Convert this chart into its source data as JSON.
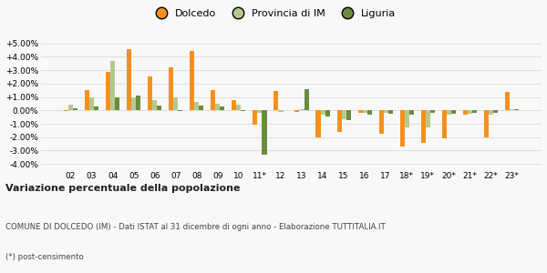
{
  "years": [
    "02",
    "03",
    "04",
    "05",
    "06",
    "07",
    "08",
    "09",
    "10",
    "11*",
    "12",
    "13",
    "14",
    "15",
    "16",
    "17",
    "18*",
    "19*",
    "20*",
    "21*",
    "22*",
    "23*"
  ],
  "dolcedo": [
    -0.05,
    1.5,
    2.9,
    4.6,
    2.55,
    3.2,
    4.45,
    1.5,
    0.75,
    -1.05,
    1.45,
    -0.1,
    -2.05,
    -1.6,
    -0.2,
    -1.75,
    -2.7,
    -2.45,
    -2.1,
    -0.3,
    -2.0,
    1.4
  ],
  "provincia": [
    0.45,
    1.0,
    3.7,
    1.0,
    0.75,
    1.0,
    0.6,
    0.5,
    0.4,
    -0.2,
    -0.1,
    0.1,
    -0.3,
    -0.65,
    -0.2,
    -0.2,
    -1.3,
    -1.3,
    -0.3,
    -0.25,
    -0.3,
    0.1
  ],
  "liguria": [
    0.15,
    0.3,
    0.95,
    1.1,
    0.35,
    -0.05,
    0.35,
    0.3,
    -0.05,
    -3.3,
    0.0,
    1.6,
    -0.45,
    -0.75,
    -0.35,
    -0.25,
    -0.3,
    -0.2,
    -0.25,
    -0.2,
    -0.2,
    0.1
  ],
  "color_dolcedo": "#f5901e",
  "color_provincia": "#b5c98e",
  "color_liguria": "#6b8c3e",
  "title_bold": "Variazione percentuale della popolazione",
  "subtitle": "COMUNE DI DOLCEDO (IM) - Dati ISTAT al 31 dicembre di ogni anno - Elaborazione TUTTITALIA.IT",
  "footnote": "(*) post-censimento",
  "yticks": [
    -4.0,
    -3.0,
    -2.0,
    -1.0,
    0.0,
    1.0,
    2.0,
    3.0,
    4.0,
    5.0
  ],
  "ylim": [
    -4.4,
    5.8
  ],
  "background_color": "#f8f8f8",
  "grid_color": "#dddddd"
}
